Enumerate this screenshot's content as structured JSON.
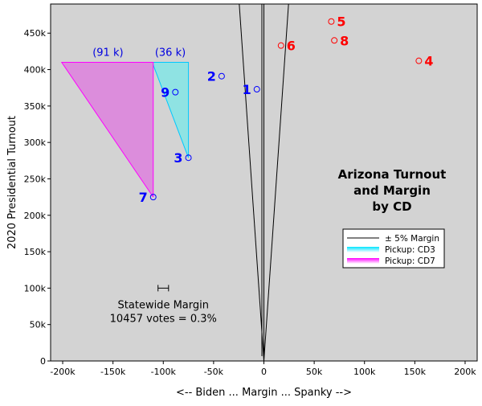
{
  "chart_data": {
    "type": "scatter",
    "title_lines": [
      "Arizona Turnout",
      "and Margin",
      "by CD"
    ],
    "xlabel": "<-- Biden ... Margin ... Spanky -->",
    "ylabel": "2020 Presidential Turnout",
    "xlim": [
      -212000,
      212000
    ],
    "ylim": [
      0,
      490000
    ],
    "x_ticks": [
      {
        "value": -200000,
        "label": "-200k"
      },
      {
        "value": -150000,
        "label": "-150k"
      },
      {
        "value": -100000,
        "label": "-100k"
      },
      {
        "value": -50000,
        "label": "-50k"
      },
      {
        "value": 0,
        "label": "0"
      },
      {
        "value": 50000,
        "label": "50k"
      },
      {
        "value": 100000,
        "label": "100k"
      },
      {
        "value": 150000,
        "label": "150k"
      },
      {
        "value": 200000,
        "label": "200k"
      }
    ],
    "y_ticks": [
      {
        "value": 0,
        "label": "0"
      },
      {
        "value": 50000,
        "label": "50k"
      },
      {
        "value": 100000,
        "label": "100k"
      },
      {
        "value": 150000,
        "label": "150k"
      },
      {
        "value": 200000,
        "label": "200k"
      },
      {
        "value": 250000,
        "label": "250k"
      },
      {
        "value": 300000,
        "label": "300k"
      },
      {
        "value": 350000,
        "label": "350k"
      },
      {
        "value": 400000,
        "label": "400k"
      },
      {
        "value": 450000,
        "label": "450k"
      }
    ],
    "grid": false,
    "background": "#d3d3d3",
    "points": [
      {
        "label": "1",
        "x": -7000,
        "y": 373000,
        "color": "#0000ff",
        "label_side": "left"
      },
      {
        "label": "2",
        "x": -42000,
        "y": 391000,
        "color": "#0000ff",
        "label_side": "left"
      },
      {
        "label": "3",
        "x": -75000,
        "y": 279000,
        "color": "#0000ff",
        "label_side": "left"
      },
      {
        "label": "4",
        "x": 154000,
        "y": 412000,
        "color": "#ff0000",
        "label_side": "right"
      },
      {
        "label": "5",
        "x": 67000,
        "y": 466000,
        "color": "#ff0000",
        "label_side": "right"
      },
      {
        "label": "6",
        "x": 17000,
        "y": 433000,
        "color": "#ff0000",
        "label_side": "right"
      },
      {
        "label": "7",
        "x": -110000,
        "y": 225000,
        "color": "#0000ff",
        "label_side": "left"
      },
      {
        "label": "8",
        "x": 70000,
        "y": 440000,
        "color": "#ff0000",
        "label_side": "right"
      },
      {
        "label": "9",
        "x": -88000,
        "y": 369000,
        "color": "#0000ff",
        "label_side": "left"
      }
    ],
    "margin_lines": {
      "percent": 0.05,
      "color": "#000000"
    },
    "pickups": [
      {
        "name": "CD3",
        "vertex": [
          -75000,
          279000
        ],
        "top_y": 410000,
        "left_x": -111000,
        "right_x": -75000,
        "fill": "#8fe3e3",
        "edge": "#00c8ff",
        "label": "(36 k)",
        "label_x": -93000
      },
      {
        "name": "CD7",
        "vertex": [
          -110000,
          225000
        ],
        "top_y": 410000,
        "left_x": -201000,
        "right_x": -110000,
        "fill": "#dc8ddc",
        "edge": "#ff00ff",
        "label": "(91 k)",
        "label_x": -155000
      }
    ],
    "legend": {
      "placement": "lower-right",
      "entries": [
        {
          "label": "±  5%  Margin",
          "style": "line",
          "color": "#000000"
        },
        {
          "label": "Pickup: CD3",
          "style": "band",
          "color": "#00e5ff"
        },
        {
          "label": "Pickup: CD7",
          "style": "band",
          "color": "#ff00ff"
        }
      ]
    },
    "statewide": {
      "margin": 10457,
      "errorbar_center_x": -100000,
      "errorbar_y": 100000,
      "label_lines": [
        "Statewide Margin",
        "10457 votes = 0.3%"
      ]
    }
  }
}
